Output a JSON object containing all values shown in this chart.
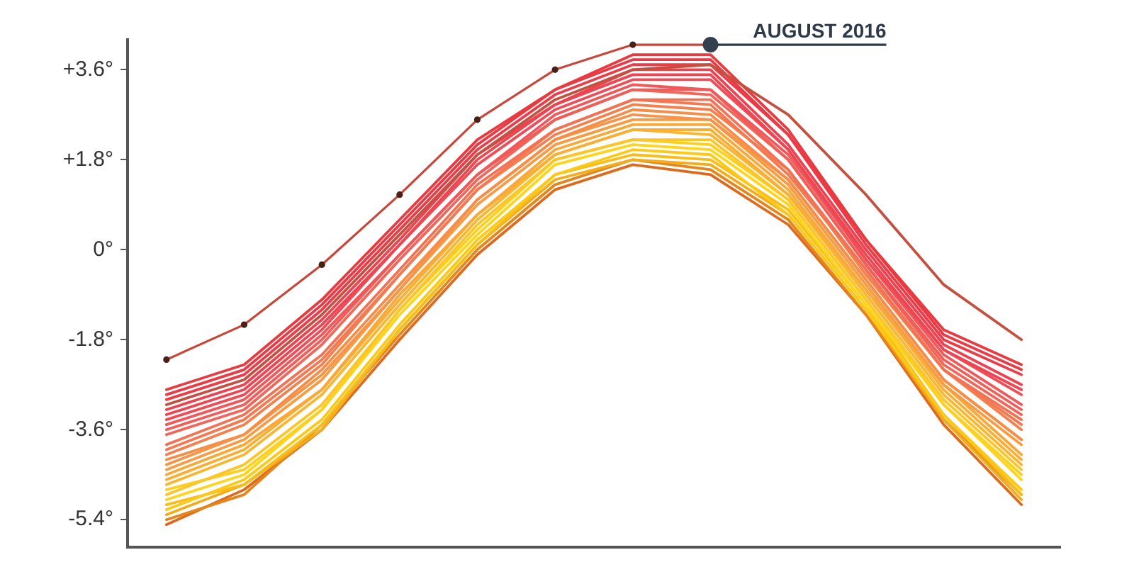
{
  "chart_data": {
    "type": "line",
    "categories": [
      null,
      null,
      null,
      null,
      null,
      null,
      null,
      null,
      null,
      null,
      null,
      null
    ],
    "ylim": [
      -5.95,
      4.2
    ],
    "yticks": [
      {
        "value": 3.6,
        "label": "+3.6°"
      },
      {
        "value": 1.8,
        "label": "+1.8°"
      },
      {
        "value": 0,
        "label": "0°"
      },
      {
        "value": -1.8,
        "label": "-1.8°"
      },
      {
        "value": -3.6,
        "label": "-3.6°"
      },
      {
        "value": -5.4,
        "label": "-5.4°"
      }
    ],
    "tick_labels": "y",
    "marker": "none",
    "annotations": [
      "AUGUST 2016"
    ],
    "series": [
      {
        "color": "#de6a1f",
        "values": [
          -5.5,
          -4.8,
          -3.6,
          -1.8,
          -0.1,
          1.2,
          1.7,
          1.5,
          0.5,
          -1.3,
          -3.5,
          -5.1
        ]
      },
      {
        "color": "#e5861c",
        "values": [
          -5.4,
          -4.9,
          -3.5,
          -1.7,
          0.0,
          1.3,
          1.8,
          1.6,
          0.6,
          -1.3,
          -3.4,
          -4.9
        ]
      },
      {
        "color": "#f2ac1c",
        "values": [
          -5.3,
          -4.7,
          -3.6,
          -1.6,
          0.1,
          1.4,
          1.8,
          1.7,
          0.7,
          -1.2,
          -3.4,
          -5.0
        ]
      },
      {
        "color": "#f8bd18",
        "values": [
          -5.1,
          -4.7,
          -3.5,
          -1.6,
          0.1,
          1.5,
          1.9,
          1.8,
          0.8,
          -1.1,
          -3.3,
          -4.9
        ]
      },
      {
        "color": "#fcc916",
        "values": [
          -5.2,
          -4.6,
          -3.4,
          -1.5,
          0.2,
          1.5,
          2.0,
          1.9,
          0.7,
          -1.2,
          -3.3,
          -4.8
        ]
      },
      {
        "color": "#fed51c",
        "values": [
          -5.0,
          -4.5,
          -3.2,
          -1.3,
          0.3,
          1.7,
          2.1,
          2.0,
          0.9,
          -1.1,
          -3.1,
          -4.6
        ]
      },
      {
        "color": "#fdcf20",
        "values": [
          -4.8,
          -4.4,
          -3.2,
          -1.2,
          0.4,
          1.8,
          2.2,
          2.1,
          1.0,
          -1.0,
          -3.1,
          -4.5
        ]
      },
      {
        "color": "#fcc62a",
        "values": [
          -4.9,
          -4.3,
          -3.1,
          -1.2,
          0.5,
          1.8,
          2.2,
          2.2,
          1.0,
          -1.0,
          -3.0,
          -4.4
        ]
      },
      {
        "color": "#fab632",
        "values": [
          -4.7,
          -4.1,
          -2.9,
          -1.1,
          0.6,
          1.9,
          2.4,
          2.3,
          1.1,
          -0.9,
          -2.9,
          -4.3
        ]
      },
      {
        "color": "#f9ae36",
        "values": [
          -4.6,
          -4.0,
          -2.8,
          -1.0,
          0.7,
          1.9,
          2.4,
          2.4,
          1.1,
          -0.8,
          -2.8,
          -4.2
        ]
      },
      {
        "color": "#f9a83a",
        "values": [
          -4.5,
          -3.9,
          -2.8,
          -0.9,
          0.7,
          2.0,
          2.5,
          2.5,
          1.2,
          -0.8,
          -2.7,
          -4.1
        ]
      },
      {
        "color": "#f89b42",
        "values": [
          -4.4,
          -3.8,
          -2.6,
          -0.8,
          0.9,
          2.1,
          2.6,
          2.6,
          1.3,
          -0.7,
          -2.7,
          -3.9
        ]
      },
      {
        "color": "#f7944a",
        "values": [
          -4.3,
          -3.7,
          -2.5,
          -0.8,
          1.0,
          2.2,
          2.7,
          2.6,
          1.4,
          -0.6,
          -2.6,
          -3.8
        ]
      },
      {
        "color": "#f68e48",
        "values": [
          -4.2,
          -3.7,
          -2.4,
          -0.7,
          1.0,
          2.2,
          2.8,
          2.7,
          1.4,
          -0.6,
          -2.6,
          -3.8
        ]
      },
      {
        "color": "#f5804e",
        "values": [
          -4.1,
          -3.5,
          -2.3,
          -0.5,
          1.2,
          2.3,
          2.9,
          2.8,
          1.6,
          -0.5,
          -2.4,
          -3.6
        ]
      },
      {
        "color": "#f47851",
        "values": [
          -4.0,
          -3.4,
          -2.2,
          -0.5,
          1.2,
          2.4,
          3.0,
          2.9,
          1.5,
          -0.4,
          -2.4,
          -3.5
        ]
      },
      {
        "color": "#f47254",
        "values": [
          -3.9,
          -3.3,
          -2.1,
          -0.4,
          1.3,
          2.4,
          3.0,
          3.0,
          1.6,
          -0.4,
          -2.4,
          -3.4
        ]
      },
      {
        "color": "#f26558",
        "values": [
          -3.7,
          -3.2,
          -1.9,
          -0.2,
          1.4,
          2.6,
          3.2,
          3.1,
          1.8,
          -0.3,
          -2.3,
          -3.3
        ]
      },
      {
        "color": "#f05e59",
        "values": [
          -3.6,
          -3.1,
          -1.8,
          -0.1,
          1.5,
          2.6,
          3.2,
          3.2,
          1.8,
          -0.3,
          -2.2,
          -3.2
        ]
      },
      {
        "color": "#f1585a",
        "values": [
          -3.5,
          -3.0,
          -1.7,
          -0.1,
          1.5,
          2.7,
          3.3,
          3.2,
          1.9,
          -0.2,
          -2.1,
          -3.1
        ]
      },
      {
        "color": "#ef4c56",
        "values": [
          -3.4,
          -2.9,
          -1.6,
          0.1,
          1.7,
          2.8,
          3.4,
          3.4,
          2.0,
          -0.2,
          -2.0,
          -2.9
        ]
      },
      {
        "color": "#ee4651",
        "values": [
          -3.3,
          -2.8,
          -1.5,
          0.1,
          1.8,
          2.9,
          3.5,
          3.5,
          2.0,
          -0.1,
          -2.0,
          -2.8
        ]
      },
      {
        "color": "#ee4250",
        "values": [
          -3.2,
          -2.7,
          -1.4,
          0.2,
          1.9,
          2.9,
          3.6,
          3.6,
          2.1,
          0.0,
          -1.9,
          -2.7
        ]
      },
      {
        "color": "#ec3c48",
        "values": [
          -3.0,
          -2.5,
          -1.2,
          0.4,
          2.0,
          3.1,
          3.7,
          3.7,
          2.3,
          0.1,
          -1.8,
          -2.5
        ]
      },
      {
        "color": "#ea3a44",
        "values": [
          -2.9,
          -2.4,
          -1.1,
          0.5,
          2.1,
          3.2,
          3.8,
          3.8,
          2.3,
          0.2,
          -1.7,
          -2.4
        ]
      },
      {
        "color": "#e83a3f",
        "values": [
          -2.8,
          -2.3,
          -1.0,
          0.6,
          2.2,
          3.2,
          3.9,
          3.9,
          2.4,
          0.2,
          -1.6,
          -2.3
        ]
      },
      {
        "color": "#c4503f",
        "values": [
          -3.1,
          -2.6,
          -1.3,
          0.3,
          1.9,
          3.0,
          3.6,
          3.7,
          2.7,
          1.1,
          -0.7,
          -1.8
        ]
      },
      {
        "color": "#c8463a",
        "marker": "circle",
        "values": [
          -2.2,
          -1.5,
          -0.3,
          1.1,
          2.6,
          3.6,
          4.1,
          4.1,
          null,
          null,
          null,
          null
        ]
      }
    ]
  }
}
